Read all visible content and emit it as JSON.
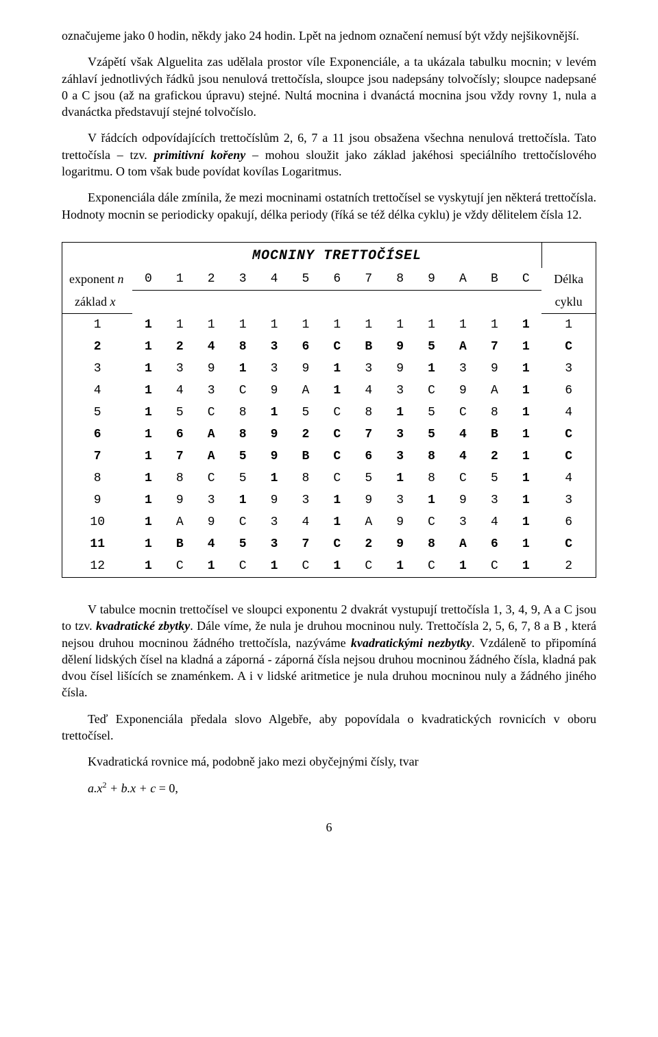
{
  "paragraphs": {
    "p1": "označujeme jako 0 hodin, někdy jako 24 hodin. Lpět na jednom označení nemusí být vždy nejšikovnější.",
    "p2": "Vzápětí však Alguelita zas udělala prostor víle Exponenciále, a ta ukázala tabulku mocnin; v levém záhlaví jednotlivých řádků jsou nenulová trettočísla, sloupce jsou nadepsány tolvočísly; sloupce nadepsané 0 a C jsou (až na grafickou úpravu) stejné. Nultá mocnina i dvanáctá mocnina jsou vždy rovny 1, nula a dvanáctka představují stejné tolvočíslo.",
    "p3a": "V řádcích odpovídajících trettočíslům 2, 6, 7 a 11 jsou obsažena všechna nenulová trettočísla. Tato trettočísla – tzv. ",
    "p3b": "primitivní kořeny",
    "p3c": " – mohou sloužit jako základ jakéhosi speciálního trettočíslového logaritmu. O tom však bude povídat kovílas Logaritmus.",
    "p4": "Exponenciála dále zmínila, že mezi mocninami ostatních trettočísel se vyskytují jen některá trettočísla. Hodnoty mocnin se periodicky opakují, délka periody (říká se též délka cyklu) je vždy dělitelem čísla 12.",
    "p5a": "V tabulce mocnin trettočísel  ve sloupci exponentu 2  dvakrát vystupují trettočísla 1, 3, 4, 9, A a C jsou to tzv. ",
    "p5b": "kvadratické zbytky",
    "p5c": ". Dále víme, že nula je druhou mocninou nuly. Trettočísla 2, 5, 6, 7, 8 a B , která nejsou druhou mocninou žádného trettočísla, nazýváme ",
    "p5d": "kvadratickými nezbytky",
    "p5e": ". Vzdáleně to připomíná dělení lidských čísel na kladná a záporná - záporná čísla nejsou druhou mocninou žádného čísla, kladná pak dvou čísel lišících se znaménkem. A i v lidské aritmetice je nula druhou mocninou nuly a žádného jiného čísla.",
    "p6": "Teď Exponenciála předala slovo Algebře, aby popovídala o kvadratických rovnicích v oboru trettočísel.",
    "p7": "Kvadratická rovnice má, podobně jako mezi obyčejnými čísly, tvar"
  },
  "table": {
    "title": "MOCNINY TRETTOČÍSEL",
    "hdr_exponent": "exponent",
    "hdr_exponent_var": "n",
    "hdr_last": "Délka",
    "sub_left": "základ",
    "sub_left_var": "x",
    "sub_right": "cyklu",
    "exponents": [
      "0",
      "1",
      "2",
      "3",
      "4",
      "5",
      "6",
      "7",
      "8",
      "9",
      "A",
      "B",
      "C"
    ],
    "rows": [
      {
        "base": "1",
        "vals": [
          "1",
          "1",
          "1",
          "1",
          "1",
          "1",
          "1",
          "1",
          "1",
          "1",
          "1",
          "1",
          "1"
        ],
        "len": "1",
        "bold": [
          0,
          12
        ],
        "row_bold": false
      },
      {
        "base": "2",
        "vals": [
          "1",
          "2",
          "4",
          "8",
          "3",
          "6",
          "C",
          "B",
          "9",
          "5",
          "A",
          "7",
          "1"
        ],
        "len": "C",
        "bold": [],
        "row_bold": true
      },
      {
        "base": "3",
        "vals": [
          "1",
          "3",
          "9",
          "1",
          "3",
          "9",
          "1",
          "3",
          "9",
          "1",
          "3",
          "9",
          "1"
        ],
        "len": "3",
        "bold": [
          0,
          3,
          6,
          9,
          12
        ],
        "row_bold": false
      },
      {
        "base": "4",
        "vals": [
          "1",
          "4",
          "3",
          "C",
          "9",
          "A",
          "1",
          "4",
          "3",
          "C",
          "9",
          "A",
          "1"
        ],
        "len": "6",
        "bold": [
          0,
          6,
          12
        ],
        "row_bold": false
      },
      {
        "base": "5",
        "vals": [
          "1",
          "5",
          "C",
          "8",
          "1",
          "5",
          "C",
          "8",
          "1",
          "5",
          "C",
          "8",
          "1"
        ],
        "len": "4",
        "bold": [
          0,
          4,
          8,
          12
        ],
        "row_bold": false
      },
      {
        "base": "6",
        "vals": [
          "1",
          "6",
          "A",
          "8",
          "9",
          "2",
          "C",
          "7",
          "3",
          "5",
          "4",
          "B",
          "1"
        ],
        "len": "C",
        "bold": [],
        "row_bold": true
      },
      {
        "base": "7",
        "vals": [
          "1",
          "7",
          "A",
          "5",
          "9",
          "B",
          "C",
          "6",
          "3",
          "8",
          "4",
          "2",
          "1"
        ],
        "len": "C",
        "bold": [],
        "row_bold": true
      },
      {
        "base": "8",
        "vals": [
          "1",
          "8",
          "C",
          "5",
          "1",
          "8",
          "C",
          "5",
          "1",
          "8",
          "C",
          "5",
          "1"
        ],
        "len": "4",
        "bold": [
          0,
          4,
          8,
          12
        ],
        "row_bold": false
      },
      {
        "base": "9",
        "vals": [
          "1",
          "9",
          "3",
          "1",
          "9",
          "3",
          "1",
          "9",
          "3",
          "1",
          "9",
          "3",
          "1"
        ],
        "len": "3",
        "bold": [
          0,
          3,
          6,
          9,
          12
        ],
        "row_bold": false
      },
      {
        "base": "10",
        "vals": [
          "1",
          "A",
          "9",
          "C",
          "3",
          "4",
          "1",
          "A",
          "9",
          "C",
          "3",
          "4",
          "1"
        ],
        "len": "6",
        "bold": [
          0,
          6,
          12
        ],
        "row_bold": false
      },
      {
        "base": "11",
        "vals": [
          "1",
          "B",
          "4",
          "5",
          "3",
          "7",
          "C",
          "2",
          "9",
          "8",
          "A",
          "6",
          "1"
        ],
        "len": "C",
        "bold": [],
        "row_bold": true
      },
      {
        "base": "12",
        "vals": [
          "1",
          "C",
          "1",
          "C",
          "1",
          "C",
          "1",
          "C",
          "1",
          "C",
          "1",
          "C",
          "1"
        ],
        "len": "2",
        "bold": [
          0,
          2,
          4,
          6,
          8,
          10,
          12
        ],
        "row_bold": false
      }
    ]
  },
  "equation": {
    "a": "a.x",
    "exp": "2",
    "b": " + b.x + c",
    "eq": " = 0,"
  },
  "pagenum": "6"
}
